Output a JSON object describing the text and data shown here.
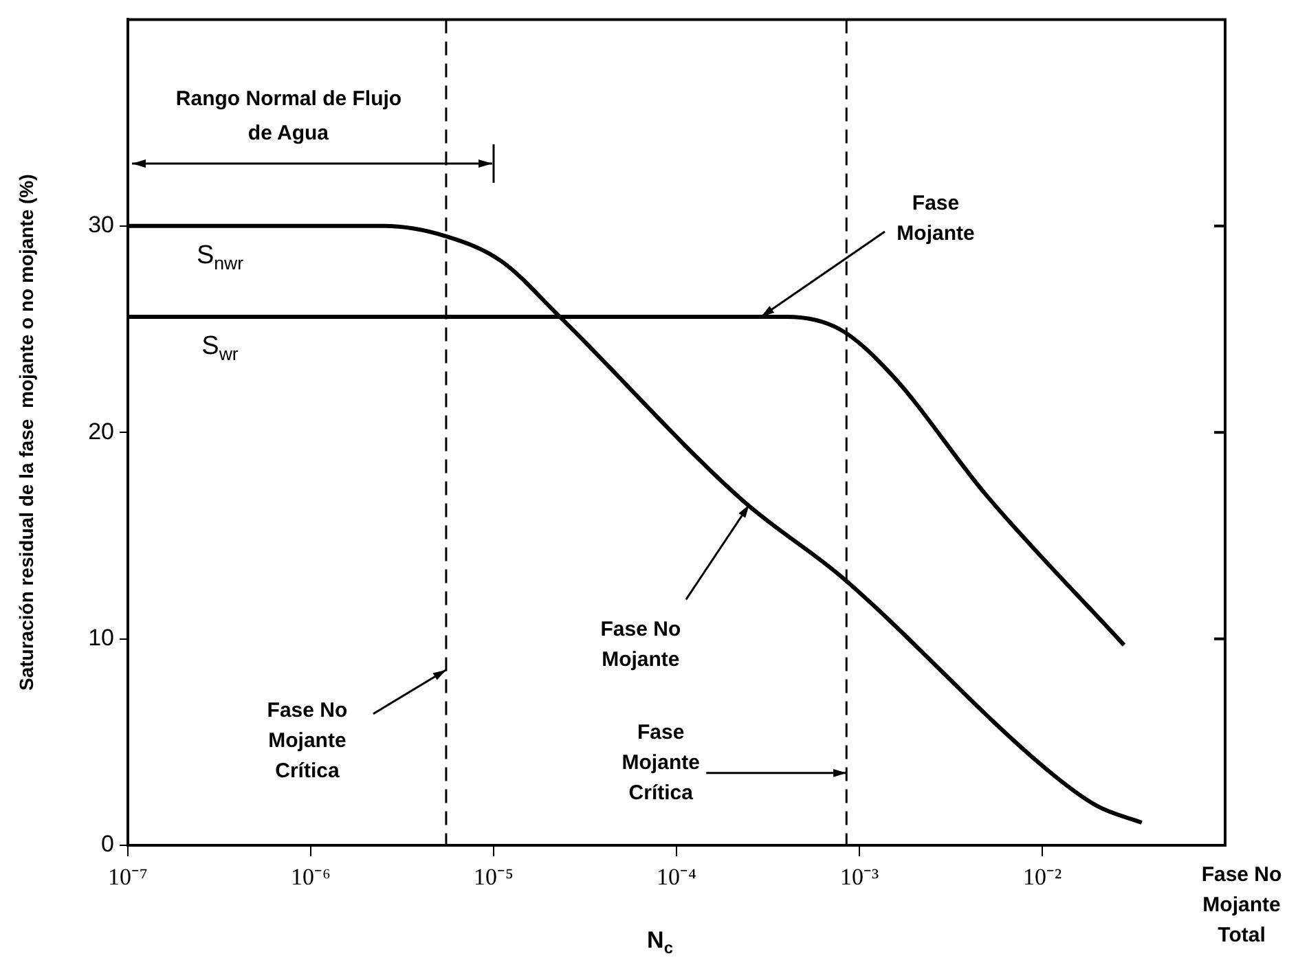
{
  "chart_data": {
    "type": "line",
    "xlabel": "N$_{c}$",
    "ylabel": "Saturación residual de la fase  mojante o no mojante (%)",
    "log": "x",
    "xlim": [
      1e-07,
      0.1
    ],
    "xticks": [
      {
        "value": 1e-07,
        "label": "10⁻⁷"
      },
      {
        "value": 1e-06,
        "label": "10⁻⁶"
      },
      {
        "value": 1e-05,
        "label": "10⁻⁵"
      },
      {
        "value": 0.0001,
        "label": "10⁻⁴"
      },
      {
        "value": 0.001,
        "label": "10⁻³"
      },
      {
        "value": 0.01,
        "label": "10⁻²"
      }
    ],
    "ylim": [
      0,
      40
    ],
    "yticks": [
      0,
      10,
      20,
      30
    ],
    "legend": false,
    "series": [
      {
        "name": "S$_{nwr}$",
        "color": "#000000",
        "x": [
          1e-07,
          1e-06,
          2.5e-06,
          5.5e-06,
          1.1e-05,
          2.3e-05,
          0.00023,
          0.0008,
          0.0105,
          0.02,
          0.035
        ],
        "values": [
          30,
          30,
          30,
          29.5,
          28.3,
          25.6,
          16.7,
          13,
          3.7,
          1.9,
          1.1
        ]
      },
      {
        "name": "S$_{wr}$",
        "color": "#000000",
        "x": [
          1e-07,
          0.0004,
          0.00078,
          0.0015,
          0.0049,
          0.028
        ],
        "values": [
          25.6,
          25.6,
          25,
          22.8,
          17,
          9.7
        ]
      }
    ],
    "ref_lines": [
      {
        "axis": "x",
        "value": 5.5e-06,
        "line_style": "dashed",
        "color": "#000000"
      },
      {
        "axis": "x",
        "value": 0.00085,
        "line_style": "dashed",
        "color": "#000000"
      }
    ],
    "annotations": [
      "Rango Normal de Flujo de Agua",
      {
        "text": "Fase Mojante",
        "x": 0.00029,
        "y": 25.6
      },
      {
        "text": "Fase No Mojante",
        "x": 0.00025,
        "y": 16.5
      },
      {
        "text": "Fase No Mojante Crítica",
        "x": 5.5e-06,
        "y": 8.5
      },
      {
        "text": "Fase Mojante Crítica",
        "x": 0.00085,
        "y": 3.5
      },
      "Fase No Mojante Total"
    ]
  }
}
